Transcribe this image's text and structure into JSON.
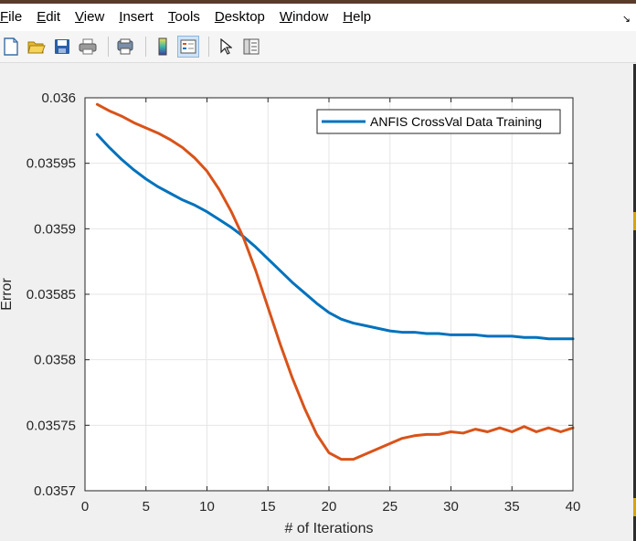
{
  "menu": {
    "items": [
      {
        "u": "F",
        "rest": "ile"
      },
      {
        "u": "E",
        "rest": "dit"
      },
      {
        "u": "V",
        "rest": "iew"
      },
      {
        "u": "I",
        "rest": "nsert"
      },
      {
        "u": "T",
        "rest": "ools"
      },
      {
        "u": "D",
        "rest": "esktop"
      },
      {
        "u": "W",
        "rest": "indow"
      },
      {
        "u": "H",
        "rest": "elp"
      }
    ],
    "dock_arrow": "↘"
  },
  "toolbar": {
    "icons": [
      "new-figure-icon",
      "open-file-icon",
      "save-icon",
      "print-icon",
      "print-preview-icon",
      "colorbar-icon",
      "legend-icon",
      "pointer-icon",
      "property-inspector-icon"
    ]
  },
  "colors": {
    "series1": "#0072BD",
    "series2": "#D95319",
    "grid": "#e6e6e6",
    "axis": "#262626"
  },
  "chart_data": {
    "type": "line",
    "xlabel": "# of Iterations",
    "ylabel": "Error",
    "xlim": [
      0,
      40
    ],
    "ylim": [
      0.0357,
      0.036
    ],
    "xticks": [
      "0",
      "5",
      "10",
      "15",
      "20",
      "25",
      "30",
      "35",
      "40"
    ],
    "yticks": [
      "0.0357",
      "0.03575",
      "0.0358",
      "0.03585",
      "0.0359",
      "0.03595",
      "0.036"
    ],
    "grid": true,
    "legend_position": "top-right",
    "x": [
      1,
      2,
      3,
      4,
      5,
      6,
      7,
      8,
      9,
      10,
      11,
      12,
      13,
      14,
      15,
      16,
      17,
      18,
      19,
      20,
      21,
      22,
      23,
      24,
      25,
      26,
      27,
      28,
      29,
      30,
      31,
      32,
      33,
      34,
      35,
      36,
      37,
      38,
      39,
      40
    ],
    "series": [
      {
        "name": "ANFIS CrossVal Data Training",
        "values": [
          0.035972,
          0.035962,
          0.035953,
          0.035945,
          0.035938,
          0.035932,
          0.035927,
          0.035922,
          0.035918,
          0.035913,
          0.035907,
          0.035901,
          0.035894,
          0.035886,
          0.035877,
          0.035868,
          0.035859,
          0.035851,
          0.035843,
          0.035836,
          0.035831,
          0.035828,
          0.035826,
          0.035824,
          0.035822,
          0.035821,
          0.035821,
          0.03582,
          0.03582,
          0.035819,
          0.035819,
          0.035819,
          0.035818,
          0.035818,
          0.035818,
          0.035817,
          0.035817,
          0.035816,
          0.035816,
          0.035816
        ]
      },
      {
        "name": "",
        "values": [
          0.035995,
          0.03599,
          0.035986,
          0.035981,
          0.035977,
          0.035973,
          0.035968,
          0.035962,
          0.035954,
          0.035944,
          0.03593,
          0.035913,
          0.035893,
          0.035868,
          0.03584,
          0.035812,
          0.035786,
          0.035763,
          0.035743,
          0.035729,
          0.035724,
          0.035724,
          0.035728,
          0.035732,
          0.035736,
          0.03574,
          0.035742,
          0.035743,
          0.035743,
          0.035745,
          0.035744,
          0.035747,
          0.035745,
          0.035748,
          0.035745,
          0.035749,
          0.035745,
          0.035748,
          0.035745,
          0.035748
        ]
      }
    ]
  }
}
